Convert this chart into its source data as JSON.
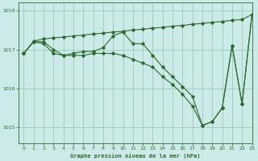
{
  "title": "Graphe pression niveau de la mer (hPa)",
  "background_color": "#cceae7",
  "grid_color": "#99ccbb",
  "line_color": "#2d6a2d",
  "marker_color": "#2d6a2d",
  "xlim": [
    -0.5,
    23
  ],
  "ylim": [
    1014.6,
    1018.2
  ],
  "yticks": [
    1015,
    1016,
    1017,
    1018
  ],
  "xticks": [
    0,
    1,
    2,
    3,
    4,
    5,
    6,
    7,
    8,
    9,
    10,
    11,
    12,
    13,
    14,
    15,
    16,
    17,
    18,
    19,
    20,
    21,
    22,
    23
  ],
  "series1": [
    1016.9,
    1017.2,
    1017.2,
    1017.0,
    1016.85,
    1016.9,
    1016.95,
    1016.95,
    1017.05,
    1017.35,
    1017.45,
    1017.15,
    1017.15,
    1016.85,
    1016.55,
    1016.3,
    1016.05,
    1015.8,
    1015.05,
    1015.15,
    1015.5,
    1017.1,
    1015.6,
    1017.9
  ],
  "series2": [
    1016.9,
    1017.2,
    1017.15,
    1016.9,
    1016.85,
    1016.85,
    1016.85,
    1016.9,
    1016.9,
    1016.9,
    1016.85,
    1016.75,
    1016.65,
    1016.55,
    1016.3,
    1016.1,
    1015.85,
    1015.55,
    1015.05,
    1015.15,
    1015.5,
    1017.1,
    1015.6,
    1017.9
  ],
  "series3": [
    1016.9,
    1017.22,
    1017.27,
    1017.3,
    1017.32,
    1017.35,
    1017.37,
    1017.4,
    1017.42,
    1017.45,
    1017.47,
    1017.5,
    1017.52,
    1017.55,
    1017.57,
    1017.6,
    1017.62,
    1017.65,
    1017.67,
    1017.7,
    1017.72,
    1017.75,
    1017.77,
    1017.9
  ]
}
